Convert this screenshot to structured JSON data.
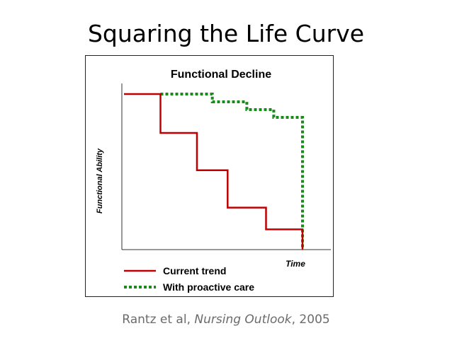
{
  "slide": {
    "title": "Squaring the Life Curve",
    "citation_prefix": "Rantz et al, ",
    "citation_journal": "Nursing Outlook",
    "citation_suffix": ", 2005"
  },
  "chart_data": {
    "type": "line",
    "title": "Functional Decline",
    "xlabel": "Time",
    "ylabel": "Functional Ability",
    "xlim": [
      0,
      100
    ],
    "ylim": [
      0,
      100
    ],
    "grid": false,
    "legend_position": "bottom-left",
    "series": [
      {
        "name": "Current trend",
        "style": "solid",
        "color": "#c00000",
        "x": [
          0,
          19,
          19,
          38,
          38,
          54,
          54,
          74,
          74,
          93,
          93
        ],
        "y": [
          100,
          100,
          75,
          75,
          51,
          51,
          27,
          27,
          13,
          13,
          0
        ]
      },
      {
        "name": "With proactive care",
        "style": "dotted",
        "color": "#1a8a1a",
        "x": [
          19,
          46,
          46,
          64,
          64,
          78,
          78,
          93,
          93
        ],
        "y": [
          100,
          100,
          95,
          95,
          90,
          90,
          85,
          85,
          0
        ]
      }
    ]
  }
}
